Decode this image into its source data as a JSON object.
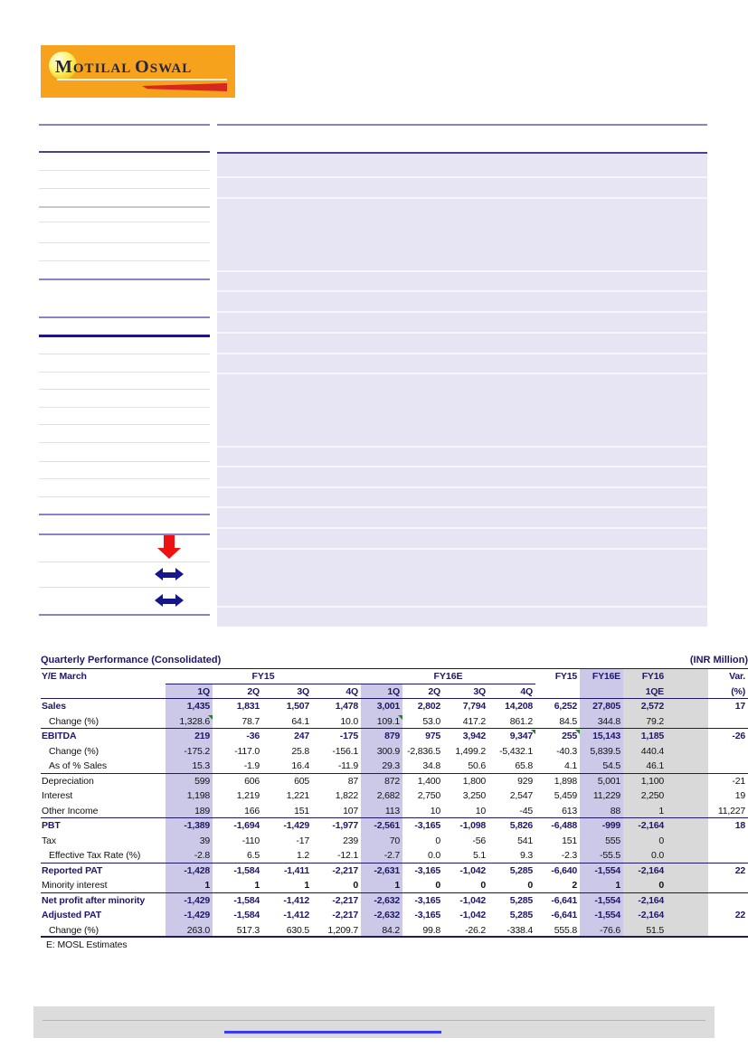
{
  "logo": {
    "brand_first": "M",
    "brand_rest1": "OTILAL ",
    "brand_first2": "O",
    "brand_rest2": "SWAL"
  },
  "annotations": {
    "arrows": [
      "red-down-arrow",
      "blue-left-right-arrow",
      "blue-left-right-arrow"
    ]
  },
  "table": {
    "title": "Quarterly Performance (Consolidated)",
    "unit_label": "(INR Million)",
    "ye_label": "Y/E March",
    "groups": [
      {
        "label": "FY15"
      },
      {
        "label": "FY16E"
      }
    ],
    "annual_headers": [
      {
        "label": "FY15"
      },
      {
        "label": "FY16E"
      },
      {
        "label": "FY16"
      },
      {
        "label": "Var."
      }
    ],
    "subheaders": [
      "1Q",
      "2Q",
      "3Q",
      "4Q",
      "1Q",
      "2Q",
      "3Q",
      "4Q",
      "",
      "",
      "1QE",
      "(%)"
    ],
    "rows": [
      {
        "label": "Sales",
        "style": "bold",
        "border": false,
        "flags": [],
        "values": [
          "1,435",
          "1,831",
          "1,507",
          "1,478",
          "3,001",
          "2,802",
          "7,794",
          "14,208",
          "6,252",
          "27,805",
          "2,572",
          "17"
        ]
      },
      {
        "label": "Change (%)",
        "style": "indent",
        "border": true,
        "flags": [
          0,
          4
        ],
        "values": [
          "1,328.6",
          "78.7",
          "64.1",
          "10.0",
          "109.1",
          "53.0",
          "417.2",
          "861.2",
          "84.5",
          "344.8",
          "79.2",
          ""
        ]
      },
      {
        "label": "EBITDA",
        "style": "bold",
        "border": false,
        "flags": [
          7,
          8
        ],
        "values": [
          "219",
          "-36",
          "247",
          "-175",
          "879",
          "975",
          "3,942",
          "9,347",
          "255",
          "15,143",
          "1,185",
          "-26"
        ]
      },
      {
        "label": "Change (%)",
        "style": "indent",
        "border": false,
        "flags": [],
        "values": [
          "-175.2",
          "-117.0",
          "25.8",
          "-156.1",
          "300.9",
          "-2,836.5",
          "1,499.2",
          "-5,432.1",
          "-40.3",
          "5,839.5",
          "440.4",
          ""
        ]
      },
      {
        "label": "As of % Sales",
        "style": "indent",
        "border": true,
        "flags": [],
        "values": [
          "15.3",
          "-1.9",
          "16.4",
          "-11.9",
          "29.3",
          "34.8",
          "50.6",
          "65.8",
          "4.1",
          "54.5",
          "46.1",
          ""
        ]
      },
      {
        "label": "Depreciation",
        "style": "plain",
        "border": false,
        "flags": [],
        "values": [
          "599",
          "606",
          "605",
          "87",
          "872",
          "1,400",
          "1,800",
          "929",
          "1,898",
          "5,001",
          "1,100",
          "-21"
        ]
      },
      {
        "label": "Interest",
        "style": "plain",
        "border": false,
        "flags": [],
        "values": [
          "1,198",
          "1,219",
          "1,221",
          "1,822",
          "2,682",
          "2,750",
          "3,250",
          "2,547",
          "5,459",
          "11,229",
          "2,250",
          "19"
        ]
      },
      {
        "label": "Other Income",
        "style": "plain",
        "border": true,
        "flags": [],
        "values": [
          "189",
          "166",
          "151",
          "107",
          "113",
          "10",
          "10",
          "-45",
          "613",
          "88",
          "1",
          "11,227"
        ]
      },
      {
        "label": "PBT",
        "style": "bold",
        "border": false,
        "flags": [],
        "values": [
          "-1,389",
          "-1,694",
          "-1,429",
          "-1,977",
          "-2,561",
          "-3,165",
          "-1,098",
          "5,826",
          "-6,488",
          "-999",
          "-2,164",
          "18"
        ]
      },
      {
        "label": "Tax",
        "style": "plain",
        "border": false,
        "flags": [],
        "values": [
          "39",
          "-110",
          "-17",
          "239",
          "70",
          "0",
          "-56",
          "541",
          "151",
          "555",
          "0",
          ""
        ]
      },
      {
        "label": "Effective Tax Rate (%)",
        "style": "indent",
        "border": true,
        "flags": [],
        "values": [
          "-2.8",
          "6.5",
          "1.2",
          "-12.1",
          "-2.7",
          "0.0",
          "5.1",
          "9.3",
          "-2.3",
          "-55.5",
          "0.0",
          ""
        ]
      },
      {
        "label": "Reported PAT",
        "style": "bold",
        "border": false,
        "flags": [],
        "values": [
          "-1,428",
          "-1,584",
          "-1,411",
          "-2,217",
          "-2,631",
          "-3,165",
          "-1,042",
          "5,285",
          "-6,640",
          "-1,554",
          "-2,164",
          "22"
        ]
      },
      {
        "label": "Minority interest",
        "style": "boldvals",
        "border": true,
        "flags": [],
        "values": [
          "1",
          "1",
          "1",
          "0",
          "1",
          "0",
          "0",
          "0",
          "2",
          "1",
          "0",
          ""
        ]
      },
      {
        "label": "Net profit after minority",
        "style": "bold",
        "border": false,
        "flags": [],
        "values": [
          "-1,429",
          "-1,584",
          "-1,412",
          "-2,217",
          "-2,632",
          "-3,165",
          "-1,042",
          "5,285",
          "-6,641",
          "-1,554",
          "-2,164",
          ""
        ]
      },
      {
        "label": "Adjusted PAT",
        "style": "bold",
        "border": false,
        "flags": [],
        "values": [
          "-1,429",
          "-1,584",
          "-1,412",
          "-2,217",
          "-2,632",
          "-3,165",
          "-1,042",
          "5,285",
          "-6,641",
          "-1,554",
          "-2,164",
          "22"
        ]
      },
      {
        "label": "Change (%)",
        "style": "indent",
        "border": "final",
        "flags": [],
        "values": [
          "263.0",
          "517.3",
          "630.5",
          "1,209.7",
          "84.2",
          "99.8",
          "-26.2",
          "-338.4",
          "555.8",
          "-76.6",
          "51.5",
          ""
        ]
      }
    ],
    "footnote": "E: MOSL Estimates",
    "colors": {
      "navy_text": "#1f1769",
      "band_lavender": "#ccc9e8",
      "band_gray": "#d9d9d9",
      "content_box": "#e7e5f3",
      "logo_orange": "#F7A21C",
      "swoosh_red": "#d6281e",
      "arrow_red": "#ee1111",
      "arrow_navy": "#16168c",
      "footer_gray": "#dcdcdc",
      "link_blue": "#3d39f5"
    }
  }
}
